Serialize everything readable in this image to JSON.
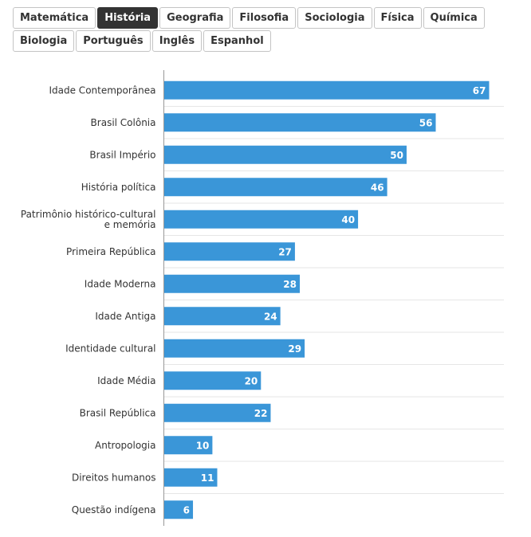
{
  "tabs": [
    "Matemática",
    "História",
    "Geografia",
    "Filosofia",
    "Sociologia",
    "Física",
    "Química",
    "Biologia",
    "Português",
    "Inglês",
    "Espanhol"
  ],
  "active_tab": "História",
  "chart_data": {
    "type": "bar",
    "orientation": "horizontal",
    "categories": [
      "Idade Contemporânea",
      "Brasil Colônia",
      "Brasil Império",
      "História política",
      "Patrimônio histórico-cultural e memória",
      "Primeira República",
      "Idade Moderna",
      "Idade Antiga",
      "Identidade cultural",
      "Idade Média",
      "Brasil República",
      "Antropologia",
      "Direitos humanos",
      "Questão indígena"
    ],
    "values": [
      67,
      56,
      50,
      46,
      40,
      27,
      28,
      24,
      29,
      20,
      22,
      10,
      11,
      6
    ],
    "bar_color": "#3a96d8",
    "xlim": [
      0,
      70
    ],
    "grid": true,
    "data_labels": true
  }
}
